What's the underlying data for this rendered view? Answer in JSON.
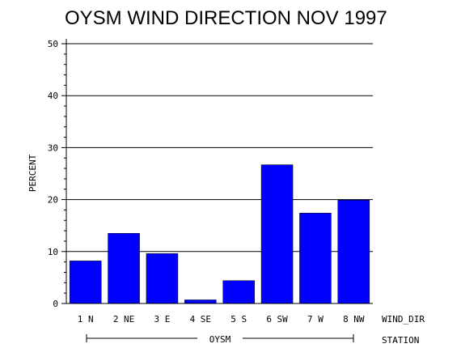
{
  "chart_data": {
    "type": "bar",
    "title": "OYSM WIND DIRECTION NOV 1997",
    "ylabel": "PERCENT",
    "xlabel": "WIND_DIR",
    "group_axis_label": "STATION",
    "group_label": "OYSM",
    "categories": [
      "1 N",
      "2 NE",
      "3 E",
      "4 SE",
      "5 S",
      "6 SW",
      "7 W",
      "8 NW"
    ],
    "values": [
      8.2,
      13.5,
      9.6,
      0.7,
      4.4,
      26.7,
      17.4,
      19.9
    ],
    "ylim": [
      0,
      50
    ],
    "yticks": [
      0,
      10,
      20,
      30,
      40,
      50
    ],
    "grid": true,
    "bar_color": "#0000ff"
  }
}
